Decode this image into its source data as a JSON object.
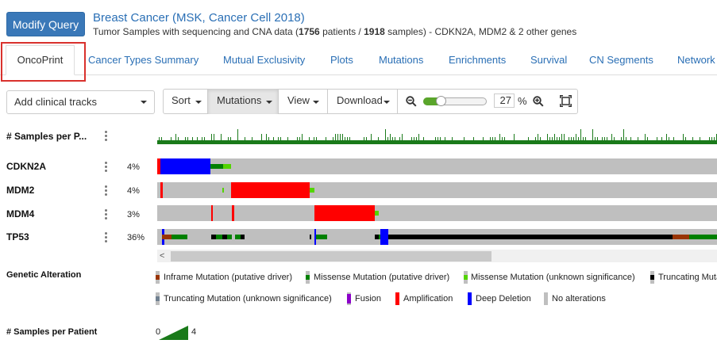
{
  "header": {
    "modify_button": "Modify Query",
    "study_title": "Breast Cancer (MSK, Cancer Cell 2018)",
    "subtitle_prefix": "Tumor Samples with sequencing and CNA data (",
    "patients_count": "1756",
    "patients_label": " patients / ",
    "samples_count": "1918",
    "samples_label": " samples)",
    "genes_suffix": "  - CDKN2A, MDM2 & 2 other genes"
  },
  "tabs": [
    {
      "label": "OncoPrint",
      "active": true
    },
    {
      "label": "Cancer Types Summary"
    },
    {
      "label": "Mutual Exclusivity"
    },
    {
      "label": "Plots"
    },
    {
      "label": "Mutations"
    },
    {
      "label": "Enrichments"
    },
    {
      "label": "Survival"
    },
    {
      "label": "CN Segments"
    },
    {
      "label": "Network"
    }
  ],
  "toolbar": {
    "clinical_tracks_placeholder": "Add clinical tracks",
    "sort": "Sort",
    "mutations": "Mutations",
    "view": "View",
    "download": "Download",
    "zoom_value": "27",
    "zoom_unit": "%",
    "zoom_fraction": 0.27
  },
  "oncoprint": {
    "samples_track_label": "# Samples per P...",
    "tracks": [
      {
        "gene": "CDKN2A",
        "pct": "4%"
      },
      {
        "gene": "MDM2",
        "pct": "4%"
      },
      {
        "gene": "MDM4",
        "pct": "3%"
      },
      {
        "gene": "TP53",
        "pct": "36%"
      }
    ],
    "scroll_left_glyph": "<"
  },
  "legend": {
    "genetic_alteration_title": "Genetic Alteration",
    "items": [
      "Inframe Mutation (putative driver)",
      "Missense Mutation (putative driver)",
      "Missense Mutation (unknown significance)",
      "Truncating Mutat",
      "Truncating Mutation (unknown significance)",
      "Fusion",
      "Amplification",
      "Deep Deletion",
      "No alterations"
    ],
    "samples_per_patient_title": "# Samples per Patient",
    "spp_min": "0",
    "spp_max": "4"
  },
  "colors": {
    "accent": "#3a78b8",
    "link": "#2a6fb5",
    "highlight": "#d9312d",
    "amplification": "#ff0000",
    "deep_deletion": "#0000ff",
    "missense_driver": "#008000",
    "missense_vus": "#53d400",
    "truncating_driver": "#000000",
    "truncating_vus": "#708090",
    "inframe_driver": "#993404",
    "fusion": "#8b00c9",
    "no_alteration": "#bebebe",
    "samples_bar": "#1a7a1a"
  }
}
